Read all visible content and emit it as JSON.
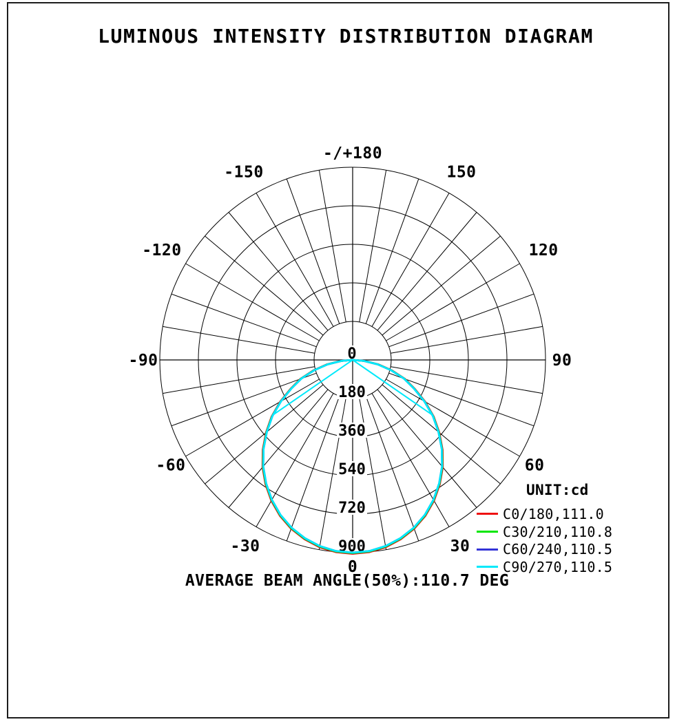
{
  "page": {
    "title": "LUMINOUS INTENSITY DISTRIBUTION DIAGRAM",
    "footer": "AVERAGE BEAM ANGLE(50%):110.7 DEG"
  },
  "legend": {
    "unit_label": "UNIT:cd",
    "items": [
      {
        "label": "C0/180,111.0",
        "color": "#ee1111"
      },
      {
        "label": "C30/210,110.8",
        "color": "#00e600"
      },
      {
        "label": "C60/240,110.5",
        "color": "#3232d7"
      },
      {
        "label": "C90/270,110.5",
        "color": "#00e9fa"
      }
    ]
  },
  "chart_data": {
    "type": "polar",
    "title": "LUMINOUS INTENSITY DISTRIBUTION DIAGRAM",
    "unit": "cd",
    "radial_ticks": [
      0,
      180,
      360,
      540,
      720,
      900
    ],
    "radial_max": 900,
    "angle_step_deg": 10,
    "angle_labels": [
      {
        "angle": 180,
        "label": "-/+180"
      },
      {
        "angle": 150,
        "label": "150"
      },
      {
        "angle": 120,
        "label": "120"
      },
      {
        "angle": 90,
        "label": "90"
      },
      {
        "angle": 60,
        "label": "60"
      },
      {
        "angle": 30,
        "label": "30"
      },
      {
        "angle": 0,
        "label": "0"
      },
      {
        "angle": -30,
        "label": "-30"
      },
      {
        "angle": -60,
        "label": "-60"
      },
      {
        "angle": -90,
        "label": "-90"
      },
      {
        "angle": -120,
        "label": "-120"
      },
      {
        "angle": -150,
        "label": "-150"
      }
    ],
    "series": [
      {
        "name": "C0/180",
        "beam_angle_deg": 111.0,
        "color": "#ee1111"
      },
      {
        "name": "C30/210",
        "beam_angle_deg": 110.8,
        "color": "#00e600"
      },
      {
        "name": "C60/240",
        "beam_angle_deg": 110.5,
        "color": "#3232d7"
      },
      {
        "name": "C90/270",
        "beam_angle_deg": 110.5,
        "color": "#00e9fa"
      }
    ],
    "distribution": {
      "note": "symmetric about nadir; intensity in cd, estimated from curve",
      "angles_deg": [
        0,
        5,
        10,
        15,
        20,
        25,
        30,
        35,
        40,
        45,
        50,
        55,
        60,
        65,
        70,
        75,
        80,
        85,
        90
      ],
      "intensity_cd": [
        900,
        896,
        883,
        862,
        834,
        798,
        754,
        704,
        649,
        588,
        523,
        457,
        386,
        315,
        255,
        185,
        118,
        52,
        0
      ]
    },
    "average_beam_angle_deg": 110.7,
    "beam_indicator": {
      "half_angle_deg": 55.35,
      "intensity_cd": 450
    }
  }
}
